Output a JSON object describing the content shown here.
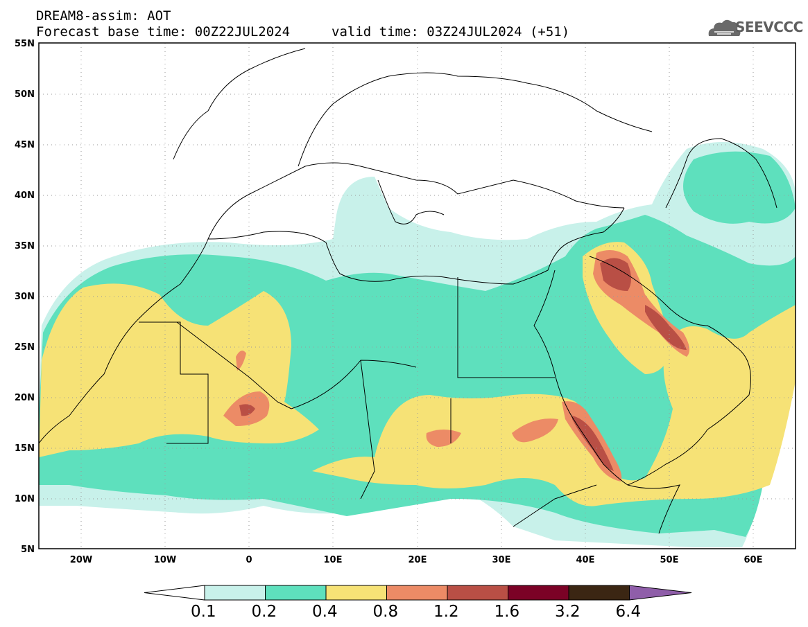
{
  "header": {
    "title": "DREAM8-assim: AOT",
    "base_time": "Forecast base time: 00Z22JUL2024",
    "valid_time": "valid time: 03Z24JUL2024 (+51)"
  },
  "logo": {
    "text": "SEEVCCC",
    "icon": "cloud-icon"
  },
  "map": {
    "variable": "AOT",
    "lon_range": [
      -25,
      65
    ],
    "lat_range": [
      5,
      55
    ],
    "lat_ticks": [
      "55N",
      "50N",
      "45N",
      "40N",
      "35N",
      "30N",
      "25N",
      "20N",
      "15N",
      "10N",
      "5N"
    ],
    "lon_ticks": [
      "20W",
      "10W",
      "0",
      "10E",
      "20E",
      "30E",
      "40E",
      "50E",
      "60E"
    ],
    "colors": {
      "ocean": "#ffffff",
      "c1": "#c8f1ea",
      "c2": "#5ee0bd",
      "c3": "#f6e276",
      "c4": "#ec8b66",
      "c5": "#b94f45",
      "c6": "#7b0226",
      "c7": "#3b2613",
      "c8": "#8f5ea9"
    }
  },
  "colorbar": {
    "labels": [
      "0.1",
      "0.2",
      "0.4",
      "0.8",
      "1.2",
      "1.6",
      "3.2",
      "6.4"
    ],
    "colors": [
      "#c8f1ea",
      "#5ee0bd",
      "#f6e276",
      "#ec8b66",
      "#b94f45",
      "#7b0226",
      "#3b2613"
    ],
    "over_color": "#8f5ea9",
    "under_color": "#ffffff"
  }
}
